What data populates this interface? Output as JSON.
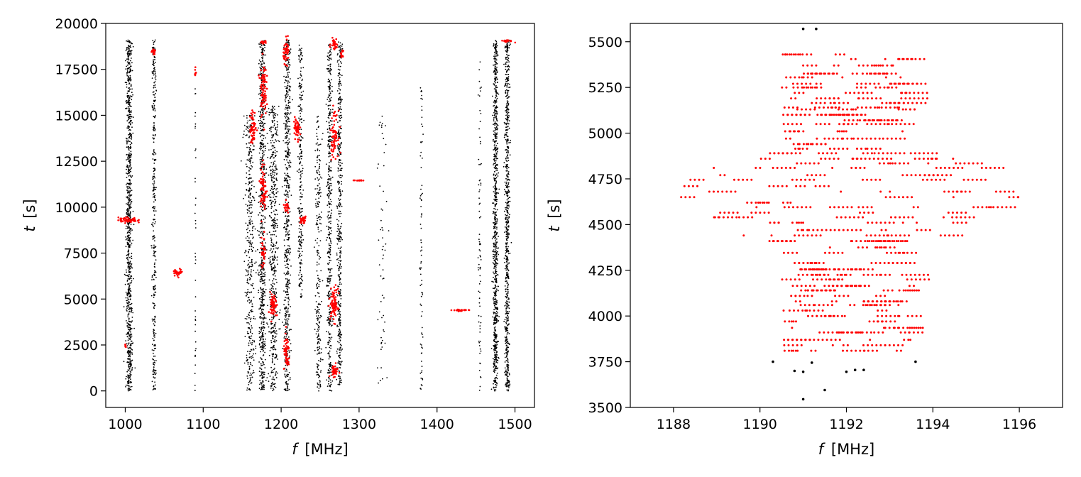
{
  "chart_data": [
    {
      "type": "scatter",
      "xlabel_var": "f",
      "xlabel_unit": "[MHz]",
      "ylabel_var": "t",
      "ylabel_unit": "[s]",
      "xlim": [
        975,
        1525
      ],
      "ylim": [
        -900,
        20000
      ],
      "xticks": [
        1000,
        1100,
        1200,
        1300,
        1400,
        1500
      ],
      "yticks": [
        0,
        2500,
        5000,
        7500,
        10000,
        12500,
        15000,
        17500,
        20000
      ],
      "grid": false,
      "colors": {
        "black": "#000000",
        "red": "#ff0000"
      },
      "black_columns": [
        {
          "f": 1005,
          "t": [
            0,
            19100
          ],
          "w": 4,
          "n": 900
        },
        {
          "f": 1037,
          "t": [
            0,
            19100
          ],
          "w": 2.5,
          "n": 350
        },
        {
          "f": 1090,
          "t": [
            0,
            17800
          ],
          "w": 0.6,
          "n": 40
        },
        {
          "f": 1160,
          "t": [
            0,
            15000
          ],
          "w": 6,
          "n": 400
        },
        {
          "f": 1176,
          "t": [
            0,
            19100
          ],
          "w": 4,
          "n": 700
        },
        {
          "f": 1190,
          "t": [
            0,
            15500
          ],
          "w": 6,
          "n": 500
        },
        {
          "f": 1208,
          "t": [
            0,
            19100
          ],
          "w": 4,
          "n": 600
        },
        {
          "f": 1225,
          "t": [
            5000,
            19000
          ],
          "w": 3,
          "n": 250
        },
        {
          "f": 1248,
          "t": [
            0,
            15000
          ],
          "w": 4,
          "n": 250
        },
        {
          "f": 1262,
          "t": [
            0,
            19000
          ],
          "w": 3,
          "n": 450
        },
        {
          "f": 1275,
          "t": [
            0,
            19000
          ],
          "w": 3,
          "n": 450
        },
        {
          "f": 1330,
          "t": [
            0,
            15000
          ],
          "w": 6,
          "n": 60
        },
        {
          "f": 1380,
          "t": [
            0,
            16500
          ],
          "w": 2,
          "n": 80
        },
        {
          "f": 1455,
          "t": [
            0,
            18000
          ],
          "w": 2,
          "n": 80
        },
        {
          "f": 1475,
          "t": [
            0,
            19100
          ],
          "w": 3,
          "n": 800
        },
        {
          "f": 1490,
          "t": [
            0,
            19100
          ],
          "w": 3,
          "n": 700
        }
      ],
      "red_clusters": [
        {
          "f": 1003,
          "t": 9300,
          "df": 12,
          "dt": 150,
          "n": 60
        },
        {
          "f": 1000,
          "t": 2450,
          "df": 1,
          "dt": 80,
          "n": 6
        },
        {
          "f": 1037,
          "t": 18500,
          "df": 3,
          "dt": 200,
          "n": 12
        },
        {
          "f": 1068,
          "t": 6450,
          "df": 6,
          "dt": 180,
          "n": 30
        },
        {
          "f": 1090,
          "t": 17400,
          "df": 1,
          "dt": 300,
          "n": 8
        },
        {
          "f": 1164,
          "t": 14300,
          "df": 4,
          "dt": 900,
          "n": 60
        },
        {
          "f": 1177,
          "t": 16500,
          "df": 4,
          "dt": 1500,
          "n": 80
        },
        {
          "f": 1177,
          "t": 19000,
          "df": 4,
          "dt": 100,
          "n": 15
        },
        {
          "f": 1177,
          "t": 11000,
          "df": 4,
          "dt": 1500,
          "n": 70
        },
        {
          "f": 1177,
          "t": 7500,
          "df": 3,
          "dt": 800,
          "n": 30
        },
        {
          "f": 1190,
          "t": 4600,
          "df": 4,
          "dt": 700,
          "n": 60
        },
        {
          "f": 1207,
          "t": 18500,
          "df": 4,
          "dt": 600,
          "n": 50
        },
        {
          "f": 1207,
          "t": 2000,
          "df": 4,
          "dt": 900,
          "n": 50
        },
        {
          "f": 1207,
          "t": 10000,
          "df": 4,
          "dt": 300,
          "n": 20
        },
        {
          "f": 1220,
          "t": 14200,
          "df": 4,
          "dt": 700,
          "n": 50
        },
        {
          "f": 1228,
          "t": 9300,
          "df": 5,
          "dt": 200,
          "n": 25
        },
        {
          "f": 1268,
          "t": 18900,
          "df": 4,
          "dt": 300,
          "n": 30
        },
        {
          "f": 1268,
          "t": 14000,
          "df": 5,
          "dt": 1200,
          "n": 70
        },
        {
          "f": 1268,
          "t": 4700,
          "df": 5,
          "dt": 900,
          "n": 80
        },
        {
          "f": 1268,
          "t": 1100,
          "df": 5,
          "dt": 300,
          "n": 40
        },
        {
          "f": 1278,
          "t": 18300,
          "df": 2,
          "dt": 300,
          "n": 15
        },
        {
          "f": 1300,
          "t": 11450,
          "df": 7,
          "dt": 20,
          "n": 12
        },
        {
          "f": 1430,
          "t": 4380,
          "df": 10,
          "dt": 60,
          "n": 25
        },
        {
          "f": 1490,
          "t": 19050,
          "df": 8,
          "dt": 60,
          "n": 20
        }
      ]
    },
    {
      "type": "scatter",
      "xlabel_var": "f",
      "xlabel_unit": "[MHz]",
      "ylabel_var": "t",
      "ylabel_unit": "[s]",
      "xlim": [
        1187,
        1197
      ],
      "ylim": [
        3500,
        5600
      ],
      "xticks": [
        1188,
        1190,
        1192,
        1194,
        1196
      ],
      "yticks": [
        3500,
        3750,
        4000,
        4250,
        4500,
        4750,
        5000,
        5250,
        5500
      ],
      "grid": false,
      "colors": {
        "black": "#000000",
        "red": "#ff0000"
      },
      "black_points": [
        [
          1191.0,
          5570
        ],
        [
          1191.3,
          5570
        ],
        [
          1190.3,
          3750
        ],
        [
          1190.8,
          3700
        ],
        [
          1191.0,
          3695
        ],
        [
          1191.2,
          3745
        ],
        [
          1191.0,
          3545
        ],
        [
          1191.5,
          3595
        ],
        [
          1192.0,
          3695
        ],
        [
          1192.2,
          3705
        ],
        [
          1192.4,
          3705
        ],
        [
          1193.6,
          3750
        ],
        [
          1191.3,
          3490
        ]
      ],
      "red_rows": [
        5430,
        5405,
        5370,
        5325,
        5305,
        5270,
        5250,
        5220,
        5190,
        5165,
        5140,
        5130,
        5100,
        5070,
        5050,
        5010,
        4970,
        4940,
        4915,
        4890,
        4860,
        4835,
        4810,
        4770,
        4745,
        4710,
        4680,
        4650,
        4620,
        4595,
        4565,
        4540,
        4510,
        4470,
        4440,
        4410,
        4375,
        4345,
        4290,
        4255,
        4225,
        4200,
        4165,
        4140,
        4110,
        4080,
        4060,
        4030,
        4000,
        3970,
        3935,
        3910,
        3870,
        3840,
        3810
      ],
      "red_fmin": 1188.0,
      "red_fmax": 1196.0
    }
  ]
}
